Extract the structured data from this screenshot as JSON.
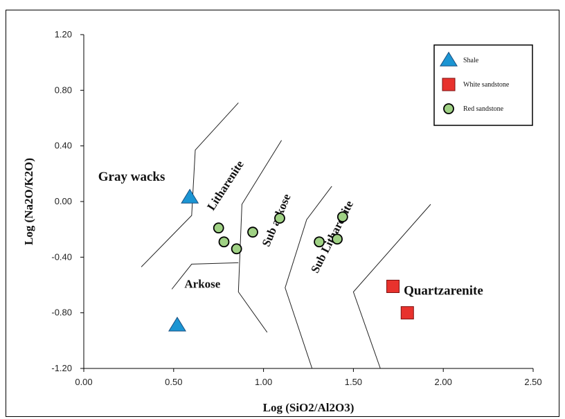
{
  "chart_data": {
    "type": "scatter",
    "xlabel": "Log (SiO2/Al2O3)",
    "ylabel": "Log (Na2O/K2O)",
    "xlim": [
      0.0,
      2.5
    ],
    "ylim": [
      -1.2,
      1.2
    ],
    "x_ticks": [
      "0.00",
      "0.50",
      "1.00",
      "1.50",
      "2.00",
      "2.50"
    ],
    "y_ticks": [
      "1.20",
      "0.80",
      "0.40",
      "0.00",
      "-0.40",
      "-0.80",
      "-1.20"
    ],
    "grid": false,
    "legend_position": "top-right",
    "series": [
      {
        "name": "Shale",
        "marker": "triangle",
        "color": "#1b95d3",
        "points": [
          [
            0.59,
            0.03
          ],
          [
            0.52,
            -0.89
          ]
        ]
      },
      {
        "name": "White sandstone",
        "marker": "square",
        "color": "#e8322d",
        "points": [
          [
            1.72,
            -0.61
          ],
          [
            1.8,
            -0.8
          ]
        ]
      },
      {
        "name": "Red sandstone",
        "marker": "circle",
        "color": "#9fd184",
        "points": [
          [
            0.75,
            -0.19
          ],
          [
            0.78,
            -0.29
          ],
          [
            0.85,
            -0.34
          ],
          [
            0.94,
            -0.22
          ],
          [
            1.09,
            -0.12
          ],
          [
            1.31,
            -0.29
          ],
          [
            1.41,
            -0.27
          ],
          [
            1.44,
            -0.11
          ]
        ]
      }
    ],
    "field_boundaries": [
      [
        [
          0.32,
          -0.47
        ],
        [
          0.6,
          -0.1
        ],
        [
          0.62,
          0.37
        ],
        [
          0.86,
          0.71
        ]
      ],
      [
        [
          0.49,
          -0.63
        ],
        [
          0.6,
          -0.45
        ],
        [
          0.86,
          -0.44
        ]
      ],
      [
        [
          1.1,
          0.44
        ],
        [
          0.88,
          -0.02
        ],
        [
          0.86,
          -0.65
        ],
        [
          1.02,
          -0.94
        ]
      ],
      [
        [
          1.38,
          0.11
        ],
        [
          1.24,
          -0.13
        ],
        [
          1.12,
          -0.62
        ],
        [
          1.27,
          -1.2
        ]
      ],
      [
        [
          1.93,
          -0.02
        ],
        [
          1.5,
          -0.65
        ],
        [
          1.65,
          -1.2
        ]
      ]
    ],
    "annotations": [
      {
        "text": "Gray wacks",
        "x": 0.08,
        "y": 0.15,
        "style": "big"
      },
      {
        "text": "Litharenite",
        "x": 0.72,
        "y": -0.07,
        "rotate": -57,
        "style": "normal"
      },
      {
        "text": "Arkose",
        "x": 0.56,
        "y": -0.62,
        "style": "normal"
      },
      {
        "text": "Sub arkose",
        "x": 1.03,
        "y": -0.33,
        "rotate": -67,
        "style": "normal"
      },
      {
        "text": "Sub Litharenite",
        "x": 1.3,
        "y": -0.52,
        "rotate": -63,
        "style": "normal"
      },
      {
        "text": "Quartzarenite",
        "x": 1.78,
        "y": -0.67,
        "style": "big"
      }
    ]
  }
}
